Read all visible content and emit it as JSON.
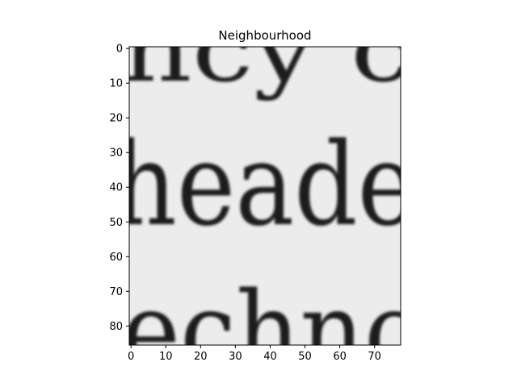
{
  "figure": {
    "title": "Neighbourhood"
  },
  "image": {
    "description_colors": {
      "paper": "#ececec",
      "ink": "#1e1e1e"
    },
    "text_rows": [
      {
        "text": "ncy c"
      },
      {
        "text": "heade"
      },
      {
        "text": "echnc"
      }
    ]
  },
  "axes": {
    "x_ticks": [
      "0",
      "10",
      "20",
      "30",
      "40",
      "50",
      "60",
      "70"
    ],
    "y_ticks": [
      "0",
      "10",
      "20",
      "30",
      "40",
      "50",
      "60",
      "70",
      "80"
    ],
    "x_range": [
      -0.5,
      77.5
    ],
    "y_range": [
      85.5,
      -0.5
    ]
  }
}
